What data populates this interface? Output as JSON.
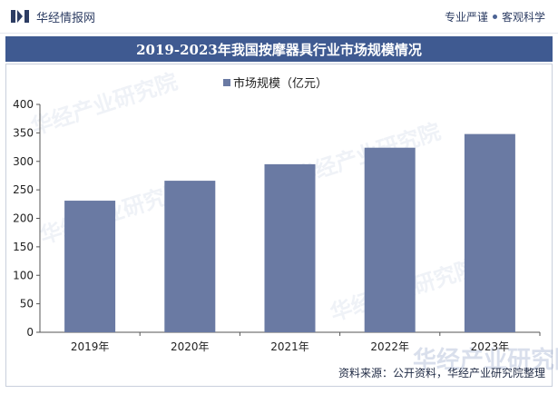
{
  "header": {
    "brand_name": "华经情报网",
    "tagline_left": "专业严谨",
    "tagline_right": "客观科学"
  },
  "watermark": "华经产业研究院",
  "colors": {
    "bar": "#6a7aa3",
    "title_bg": "#3f5a91",
    "axis": "#555555"
  },
  "chart_data": {
    "type": "bar",
    "title": "2019-2023年我国按摩器具行业市场规模情况",
    "categories": [
      "2019年",
      "2020年",
      "2021年",
      "2022年",
      "2023年"
    ],
    "series": [
      {
        "name": "市场规模（亿元）",
        "values": [
          231,
          266,
          295,
          324,
          348
        ]
      }
    ],
    "ylim": [
      0,
      400
    ],
    "yticks": [
      0,
      50,
      100,
      150,
      200,
      250,
      300,
      350,
      400
    ],
    "legend": "top-center",
    "grid": false
  },
  "footer": {
    "source": "资料来源：公开资料，华经产业研究院整理"
  }
}
